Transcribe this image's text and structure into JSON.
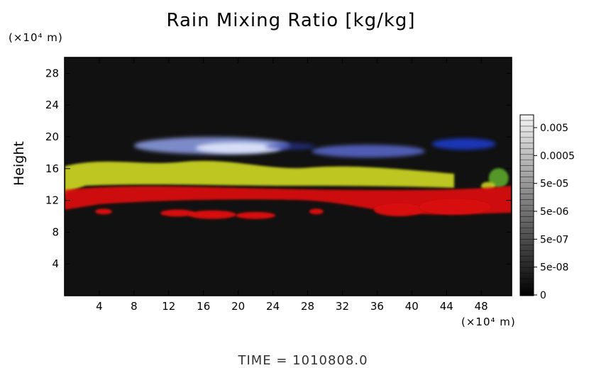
{
  "chart_data": {
    "type": "heatmap",
    "title": "Rain Mixing Ratio [kg/kg]",
    "ylabel": "Height",
    "y_unit": "(×10⁴ m)",
    "x_unit": "(×10⁴ m)",
    "xlim": [
      0,
      51.5
    ],
    "ylim": [
      0,
      30
    ],
    "x_ticks": [
      4,
      8,
      12,
      16,
      20,
      24,
      28,
      32,
      36,
      40,
      44,
      48
    ],
    "y_ticks": [
      4,
      8,
      12,
      16,
      20,
      24,
      28
    ],
    "colorbar": {
      "labels": [
        "0.005",
        "0.0005",
        "5e-05",
        "5e-06",
        "5e-07",
        "5e-08",
        "0"
      ],
      "scale": "log"
    },
    "layers": [
      {
        "color": "#5a6ad0",
        "band": [
          17.5,
          20.0
        ],
        "note_level": "high"
      },
      {
        "color": "#c8d020",
        "band": [
          14.5,
          17.5
        ]
      },
      {
        "color": "#d81010",
        "band": [
          9.5,
          14.5
        ]
      }
    ],
    "background_color": "#111111"
  },
  "time_label": "TIME  =  1010808.0"
}
